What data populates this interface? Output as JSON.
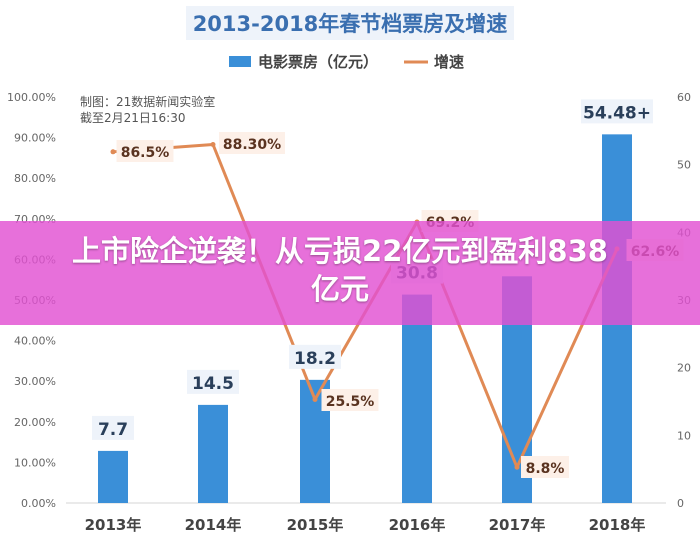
{
  "chart_data": {
    "type": "bar",
    "title": "2013-2018年春节档票房及增速",
    "categories": [
      "2013年",
      "2014年",
      "2015年",
      "2016年",
      "2017年",
      "2018年"
    ],
    "series": [
      {
        "name": "电影票房（亿元）",
        "type": "bar",
        "axis": "right",
        "values": [
          7.7,
          14.5,
          18.2,
          30.8,
          33.5,
          54.48
        ],
        "labels": [
          "7.7",
          "14.5",
          "18.2",
          "30.8",
          "",
          "54.48+"
        ],
        "color": "#3a8fd8"
      },
      {
        "name": "增速",
        "type": "line",
        "axis": "left",
        "values": [
          86.5,
          88.3,
          25.5,
          69.2,
          8.8,
          62.6
        ],
        "labels": [
          "86.5%",
          "88.30%",
          "25.5%",
          "69.2%",
          "8.8%",
          "62.6%"
        ],
        "color": "#e08a55"
      }
    ],
    "y_left": {
      "ticks": [
        "0.00%",
        "10.00%",
        "20.00%",
        "30.00%",
        "40.00%",
        "50.00%",
        "60.00%",
        "70.00%",
        "80.00%",
        "90.00%",
        "100.00%"
      ],
      "range": [
        0,
        100
      ]
    },
    "y_right": {
      "ticks": [
        "0",
        "10",
        "20",
        "30",
        "40",
        "50",
        "60"
      ],
      "range": [
        0,
        60
      ]
    },
    "legend_position": "top-center",
    "annotation": [
      "制图：21数据新闻实验室",
      "截至2月21日16:30"
    ],
    "grid": false
  },
  "overlay": {
    "headline": "上市险企逆袭！从亏损22亿元到盈利838亿元",
    "background": "#e250d2"
  }
}
